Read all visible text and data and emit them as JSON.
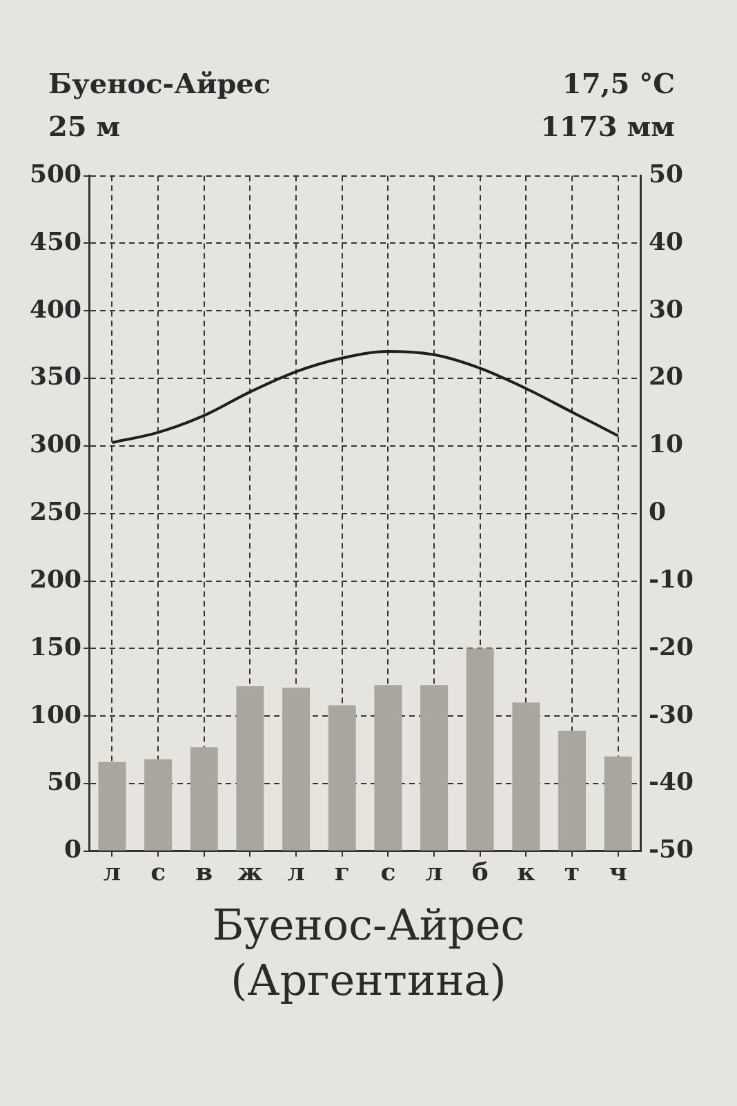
{
  "chart_data": {
    "type": "bar",
    "title": "Буенос-Айрес\n(Аргентина)",
    "annotations": [
      "Буенос-Айрес",
      "25 м",
      "17,5 °C",
      "1173 мм"
    ],
    "categories": [
      "л",
      "с",
      "в",
      "ж",
      "л",
      "г",
      "с",
      "л",
      "б",
      "к",
      "т",
      "ч"
    ],
    "series": [
      {
        "color": "#aaa69e",
        "values": [
          66,
          68,
          77,
          122,
          121,
          108,
          123,
          123,
          150,
          110,
          89,
          70
        ]
      },
      {
        "type": "line",
        "axis": "y2",
        "color": "#1e1e1e",
        "values": [
          10.5,
          12,
          14.5,
          18,
          21,
          23,
          24,
          23.5,
          21.5,
          18.5,
          15,
          11.5
        ]
      }
    ],
    "ylim": [
      0,
      500
    ],
    "yticks": [
      0,
      50,
      100,
      150,
      200,
      250,
      300,
      350,
      400,
      450,
      500
    ],
    "y2lim": [
      -50,
      50
    ],
    "y2ticks": [
      -50,
      -40,
      -30,
      -20,
      -10,
      0,
      10,
      20,
      30,
      40,
      50
    ],
    "grid": true,
    "legend": false,
    "marker": "none"
  }
}
